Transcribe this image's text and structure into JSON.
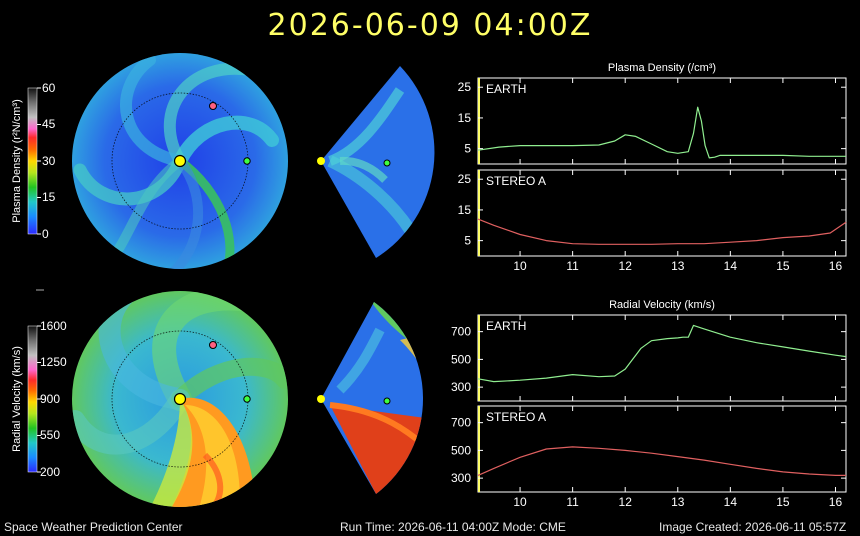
{
  "header": {
    "datetime": "2026-06-09  04:00Z"
  },
  "colors": {
    "earth_line": "#90ee90",
    "stereo_line": "#e06060",
    "title_yellow": "#ffff66",
    "frame": "#ffffff"
  },
  "colorbars": {
    "density": {
      "label": "Plasma Density (r²N/cm³)",
      "ticks": [
        "60",
        "45",
        "30",
        "15",
        "0"
      ]
    },
    "velocity": {
      "label": "Radial Velocity (km/s)",
      "ticks": [
        "1600",
        "1250",
        "900",
        "550",
        "200"
      ]
    }
  },
  "chart_data": [
    {
      "type": "line",
      "title": "Plasma Density (/cm³)",
      "label": "EARTH",
      "xlim": [
        9.2,
        16.2
      ],
      "ylim": [
        0,
        28
      ],
      "yticks": [
        5,
        15,
        25
      ],
      "x": [
        9.2,
        9.6,
        10.0,
        10.5,
        11.0,
        11.5,
        11.8,
        12.0,
        12.2,
        12.5,
        12.8,
        13.0,
        13.2,
        13.3,
        13.38,
        13.45,
        13.52,
        13.6,
        13.7,
        13.8,
        14.0,
        14.5,
        15.0,
        15.5,
        16.0,
        16.2
      ],
      "y": [
        4.5,
        5.5,
        6.0,
        6.0,
        6.0,
        6.2,
        7.5,
        9.5,
        9.0,
        6.5,
        4.0,
        3.5,
        4.0,
        10,
        18.5,
        14,
        6,
        2,
        2.2,
        2.8,
        2.8,
        2.8,
        2.8,
        2.5,
        2.5,
        2.5
      ]
    },
    {
      "type": "line",
      "label": "STEREO A",
      "xlim": [
        9.2,
        16.2
      ],
      "ylim": [
        0,
        28
      ],
      "yticks": [
        5,
        15,
        25
      ],
      "xticks": [
        10,
        11,
        12,
        13,
        14,
        15,
        16
      ],
      "x": [
        9.2,
        9.5,
        10.0,
        10.5,
        11.0,
        11.5,
        12.0,
        12.5,
        13.0,
        13.5,
        14.0,
        14.5,
        15.0,
        15.5,
        15.9,
        16.2
      ],
      "y": [
        12,
        10,
        7,
        5,
        4,
        3.8,
        3.8,
        3.8,
        4,
        4,
        4.5,
        5,
        6,
        6.5,
        7.5,
        11
      ]
    },
    {
      "type": "line",
      "title": "Radial Velocity (km/s)",
      "label": "EARTH",
      "xlim": [
        9.2,
        16.2
      ],
      "ylim": [
        200,
        820
      ],
      "yticks": [
        300,
        500,
        700
      ],
      "x": [
        9.2,
        9.5,
        10.0,
        10.5,
        11.0,
        11.5,
        11.8,
        12.0,
        12.3,
        12.5,
        12.8,
        13.0,
        13.1,
        13.2,
        13.3,
        13.5,
        14.0,
        14.5,
        15.0,
        15.5,
        16.0,
        16.2
      ],
      "y": [
        360,
        340,
        350,
        365,
        390,
        375,
        380,
        430,
        580,
        635,
        650,
        655,
        660,
        660,
        745,
        720,
        660,
        620,
        590,
        560,
        530,
        520
      ]
    },
    {
      "type": "line",
      "label": "STEREO A",
      "xlim": [
        9.2,
        16.2
      ],
      "ylim": [
        200,
        820
      ],
      "yticks": [
        300,
        500,
        700
      ],
      "xticks": [
        10,
        11,
        12,
        13,
        14,
        15,
        16
      ],
      "x": [
        9.2,
        9.5,
        10.0,
        10.5,
        11.0,
        11.5,
        12.0,
        12.5,
        13.0,
        13.5,
        14.0,
        14.5,
        15.0,
        15.5,
        16.0,
        16.2
      ],
      "y": [
        320,
        370,
        450,
        510,
        525,
        515,
        500,
        480,
        455,
        430,
        400,
        370,
        345,
        330,
        320,
        320
      ]
    }
  ],
  "footer": {
    "left": "Space Weather Prediction Center",
    "center": "Run Time: 2026-06-11 04:00Z  Mode: CME",
    "right": "Image Created: 2026-06-11 05:57Z"
  }
}
